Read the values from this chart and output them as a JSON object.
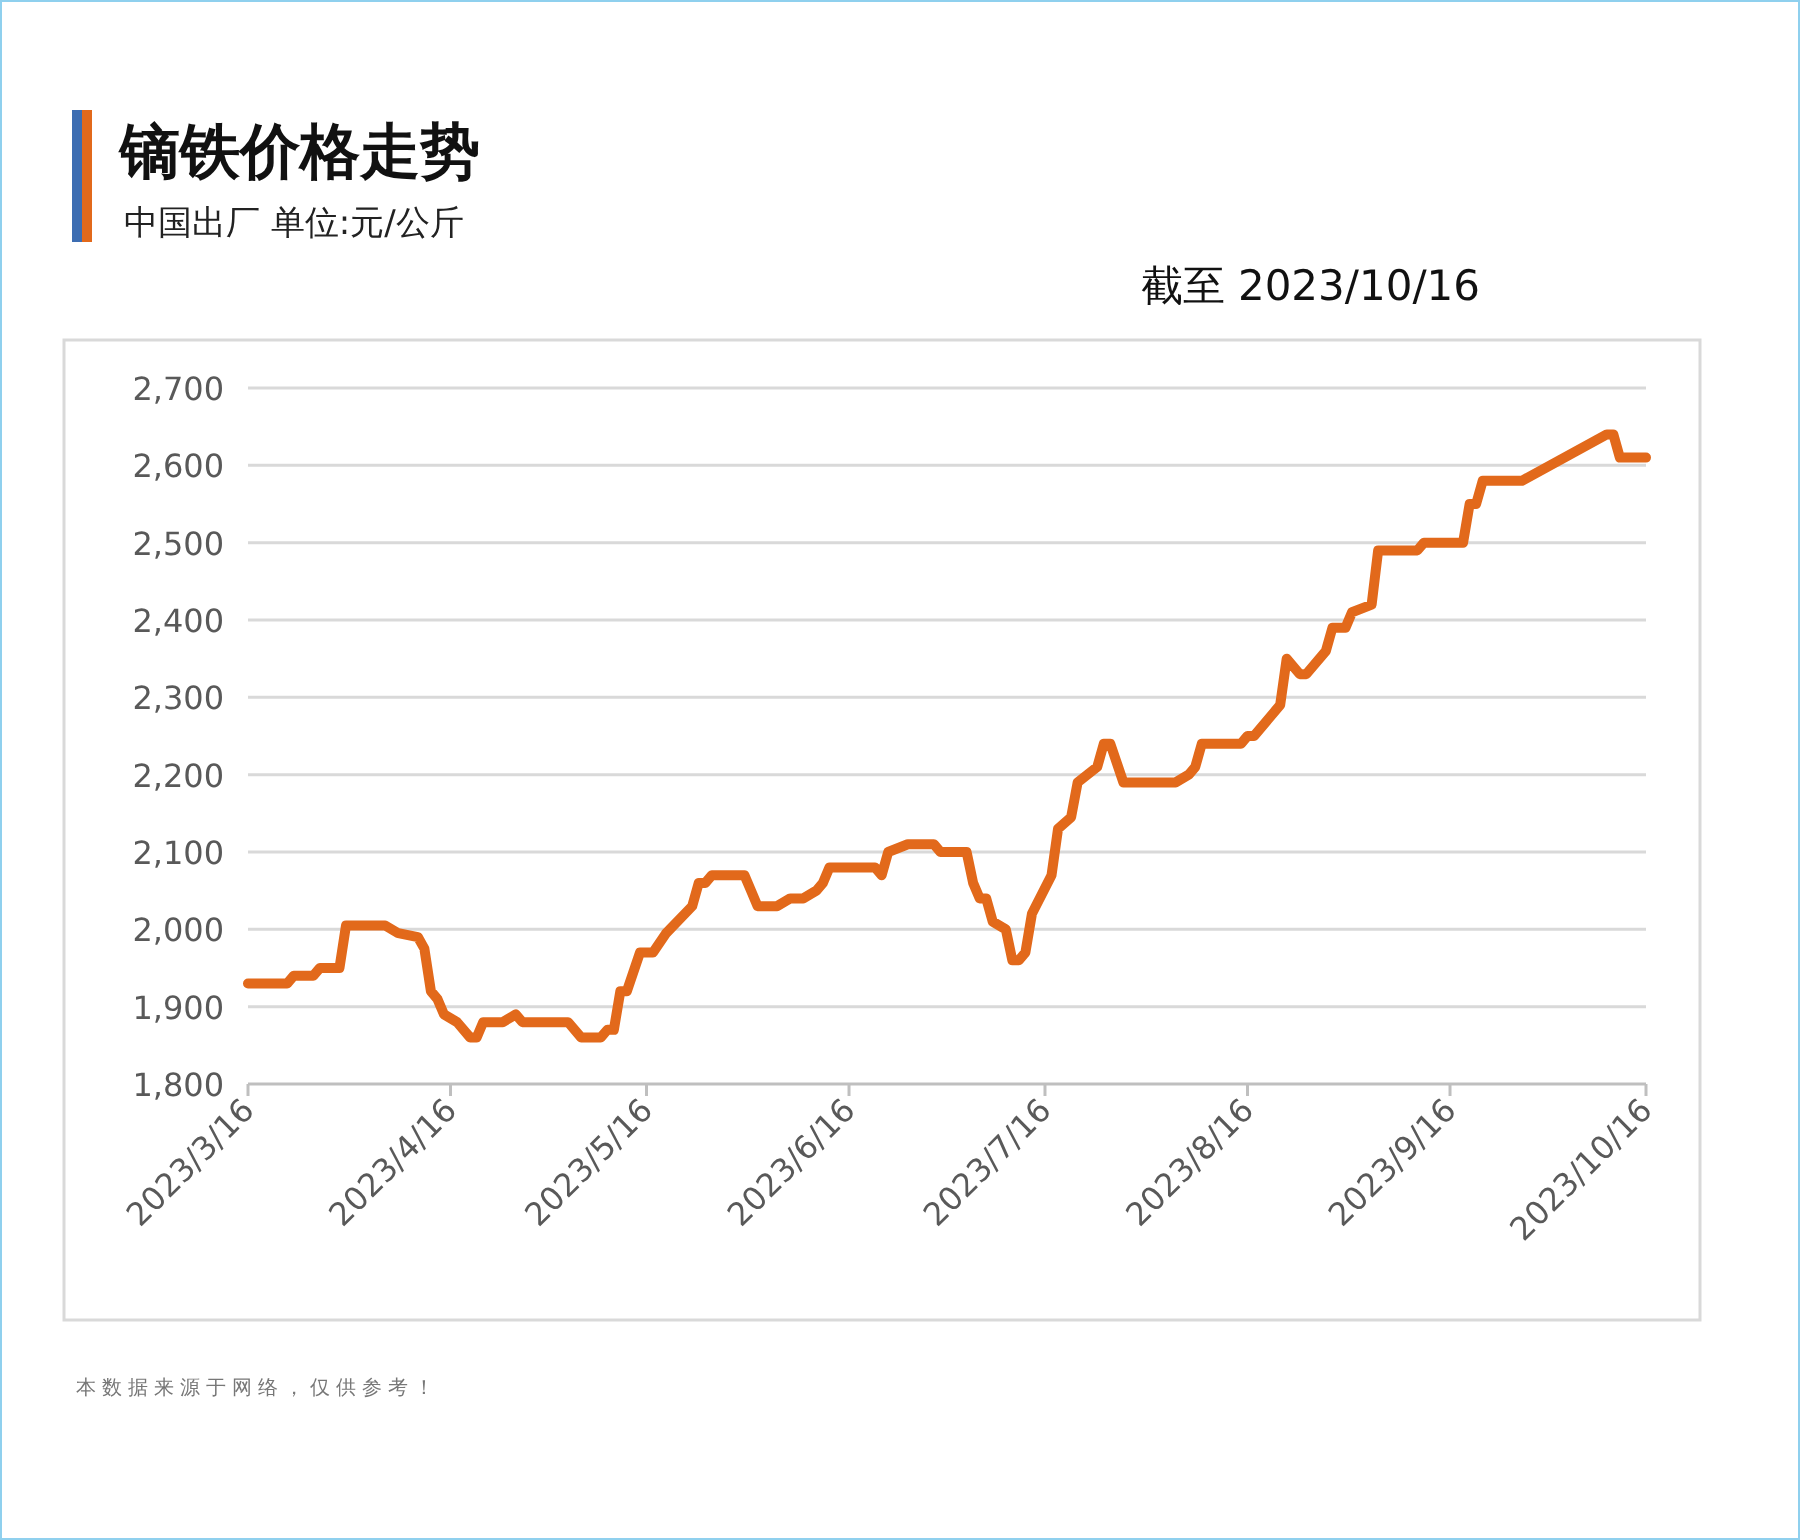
{
  "chart_data": {
    "type": "line",
    "title": "镝铁价格走势",
    "subtitle": "中国出厂  单位:元/公斤",
    "annotations": [
      "截至 2023/10/16",
      "本数据来源于网络，仅供参考！"
    ],
    "x": [
      "2023-03-16",
      "2023-03-22",
      "2023-03-23",
      "2023-03-26",
      "2023-03-27",
      "2023-03-30",
      "2023-03-31",
      "2023-04-06",
      "2023-04-08",
      "2023-04-11",
      "2023-04-12",
      "2023-04-13",
      "2023-04-14",
      "2023-04-15",
      "2023-04-17",
      "2023-04-19",
      "2023-04-20",
      "2023-04-21",
      "2023-04-24",
      "2023-04-26",
      "2023-04-27",
      "2023-05-04",
      "2023-05-06",
      "2023-05-09",
      "2023-05-10",
      "2023-05-11",
      "2023-05-12",
      "2023-05-13",
      "2023-05-15",
      "2023-05-17",
      "2023-05-19",
      "2023-05-23",
      "2023-05-24",
      "2023-05-25",
      "2023-05-26",
      "2023-05-31",
      "2023-06-01",
      "2023-06-02",
      "2023-06-05",
      "2023-06-07",
      "2023-06-09",
      "2023-06-11",
      "2023-06-12",
      "2023-06-13",
      "2023-06-20",
      "2023-06-21",
      "2023-06-22",
      "2023-06-25",
      "2023-06-29",
      "2023-06-30",
      "2023-07-04",
      "2023-07-05",
      "2023-07-06",
      "2023-07-07",
      "2023-07-08",
      "2023-07-10",
      "2023-07-11",
      "2023-07-12",
      "2023-07-13",
      "2023-07-14",
      "2023-07-17",
      "2023-07-18",
      "2023-07-20",
      "2023-07-21",
      "2023-07-24",
      "2023-07-25",
      "2023-07-26",
      "2023-07-28",
      "2023-08-05",
      "2023-08-07",
      "2023-08-08",
      "2023-08-09",
      "2023-08-15",
      "2023-08-16",
      "2023-08-17",
      "2023-08-21",
      "2023-08-22",
      "2023-08-24",
      "2023-08-25",
      "2023-08-28",
      "2023-08-29",
      "2023-08-31",
      "2023-09-01",
      "2023-09-04",
      "2023-09-05",
      "2023-09-11",
      "2023-09-12",
      "2023-09-18",
      "2023-09-19",
      "2023-09-20",
      "2023-09-21",
      "2023-09-27",
      "2023-10-10",
      "2023-10-11",
      "2023-10-12",
      "2023-10-16"
    ],
    "series": [
      {
        "color": "#e2691b",
        "values": [
          1930,
          1930,
          1940,
          1940,
          1950,
          1950,
          2005,
          2005,
          1995,
          1990,
          1975,
          1920,
          1910,
          1890,
          1880,
          1860,
          1860,
          1880,
          1880,
          1890,
          1880,
          1880,
          1860,
          1860,
          1870,
          1870,
          1920,
          1920,
          1970,
          1970,
          1995,
          2030,
          2060,
          2060,
          2070,
          2070,
          2050,
          2030,
          2030,
          2040,
          2040,
          2050,
          2060,
          2080,
          2080,
          2070,
          2100,
          2110,
          2110,
          2100,
          2100,
          2060,
          2040,
          2040,
          2010,
          2000,
          1960,
          1960,
          1970,
          2020,
          2070,
          2130,
          2145,
          2190,
          2210,
          2240,
          2240,
          2190,
          2190,
          2200,
          2210,
          2240,
          2240,
          2250,
          2250,
          2290,
          2350,
          2330,
          2330,
          2360,
          2390,
          2390,
          2410,
          2420,
          2490,
          2490,
          2500,
          2500,
          2550,
          2550,
          2580,
          2580,
          2640,
          2640,
          2610,
          2610
        ]
      }
    ],
    "xlim": [
      "2023-03-16",
      "2023-10-16"
    ],
    "xticks": [
      {
        "value": "2023-03-16",
        "label": "2023/3/16"
      },
      {
        "value": "2023-04-16",
        "label": "2023/4/16"
      },
      {
        "value": "2023-05-16",
        "label": "2023/5/16"
      },
      {
        "value": "2023-06-16",
        "label": "2023/6/16"
      },
      {
        "value": "2023-07-16",
        "label": "2023/7/16"
      },
      {
        "value": "2023-08-16",
        "label": "2023/8/16"
      },
      {
        "value": "2023-09-16",
        "label": "2023/9/16"
      },
      {
        "value": "2023-10-16",
        "label": "2023/10/16"
      }
    ],
    "ylim": [
      1800,
      2700
    ],
    "yticks": [
      {
        "value": 1800,
        "label": "1,800"
      },
      {
        "value": 1900,
        "label": "1,900"
      },
      {
        "value": 2000,
        "label": "2,000"
      },
      {
        "value": 2100,
        "label": "2,100"
      },
      {
        "value": 2200,
        "label": "2,200"
      },
      {
        "value": 2300,
        "label": "2,300"
      },
      {
        "value": 2400,
        "label": "2,400"
      },
      {
        "value": 2500,
        "label": "2,500"
      },
      {
        "value": 2600,
        "label": "2,600"
      },
      {
        "value": 2700,
        "label": "2,700"
      }
    ],
    "grid": "y",
    "marker": "none",
    "line_style": "solid"
  }
}
